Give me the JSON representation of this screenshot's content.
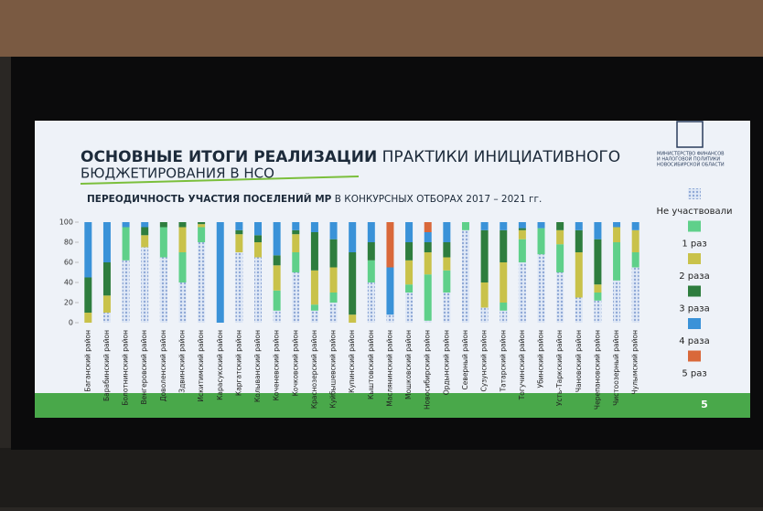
{
  "slide": {
    "title_bold": "ОСНОВНЫЕ ИТОГИ РЕАЛИЗАЦИИ",
    "title_regular": "ПРАКТИКИ ИНИЦИАТИВНОГО",
    "title_line2": "БЮДЖЕТИРОВАНИЯ В НСО",
    "logo_text": [
      "МИНИСТЕРСТВО ФИНАНСОВ",
      "И НАЛОГОВОЙ ПОЛИТИКИ",
      "НОВОСИБИРСКОЙ ОБЛАСТИ"
    ],
    "page_number": "5"
  },
  "chart_data": {
    "type": "stacked_bar",
    "title_bold": "ПЕРЕОДИЧНОСТЬ УЧАСТИЯ ПОСЕЛЕНИЙ МР",
    "title_regular": "В КОНКУРСНЫХ ОТБОРАХ 2017 – 2021 гг.",
    "categories": [
      "Баганский район",
      "Барабинский район",
      "Болотнинский район",
      "Венгеровский район",
      "Доволенский район",
      "Здвинский район",
      "Искитимский район",
      "Карасукский район",
      "Каргатский район",
      "Колыванский район",
      "Коченевский район",
      "Кочковский район",
      "Краснозерский район",
      "Куйбышевский район",
      "Купинский район",
      "Кыштовский район",
      "Маслянинский район",
      "Мошковский район",
      "Новосибирский район",
      "Ордынский район",
      "Северный район",
      "Сузунский район",
      "Татарский район",
      "Тогучинский район",
      "Убинский район",
      "Усть-Таркский район",
      "Чановский район",
      "Черепановский район",
      "Чистоозерный район",
      "Чулымский район"
    ],
    "series": [
      {
        "name": "Не участвовали",
        "color": "#8fa8d6",
        "pattern": "hatch",
        "values": [
          0,
          10,
          62,
          75,
          65,
          40,
          80,
          0,
          70,
          65,
          12,
          50,
          12,
          20,
          0,
          40,
          8,
          30,
          2,
          30,
          92,
          15,
          12,
          60,
          68,
          50,
          25,
          22,
          42,
          55
        ]
      },
      {
        "name": "1 раз",
        "color": "#5fd08a",
        "values": [
          0,
          0,
          33,
          0,
          30,
          30,
          15,
          0,
          0,
          0,
          20,
          20,
          6,
          10,
          0,
          22,
          0,
          8,
          46,
          22,
          8,
          0,
          8,
          23,
          26,
          28,
          0,
          8,
          38,
          15
        ]
      },
      {
        "name": "2 раза",
        "color": "#c9c24a",
        "values": [
          10,
          17,
          0,
          12,
          0,
          25,
          3,
          0,
          18,
          15,
          25,
          18,
          34,
          25,
          8,
          0,
          0,
          24,
          22,
          13,
          0,
          25,
          40,
          9,
          0,
          14,
          45,
          8,
          15,
          22
        ]
      },
      {
        "name": "3 раза",
        "color": "#2e7d3e",
        "values": [
          35,
          33,
          0,
          8,
          5,
          5,
          2,
          0,
          4,
          7,
          10,
          4,
          38,
          28,
          62,
          18,
          0,
          18,
          10,
          15,
          0,
          52,
          32,
          2,
          0,
          8,
          22,
          45,
          0,
          0
        ]
      },
      {
        "name": "4 раза",
        "color": "#3a92d8",
        "values": [
          55,
          40,
          5,
          5,
          0,
          0,
          0,
          100,
          8,
          13,
          33,
          8,
          10,
          17,
          30,
          20,
          47,
          20,
          10,
          20,
          0,
          8,
          8,
          6,
          6,
          0,
          8,
          17,
          5,
          8
        ]
      },
      {
        "name": "5 раз",
        "color": "#d9683a",
        "values": [
          0,
          0,
          0,
          0,
          0,
          0,
          0,
          0,
          0,
          0,
          0,
          0,
          0,
          0,
          0,
          0,
          45,
          0,
          10,
          0,
          0,
          0,
          0,
          0,
          0,
          0,
          0,
          0,
          0,
          0
        ]
      }
    ],
    "ylim": [
      0,
      100
    ],
    "yticks": [
      0,
      20,
      40,
      60,
      80,
      100
    ],
    "legend": "right"
  }
}
